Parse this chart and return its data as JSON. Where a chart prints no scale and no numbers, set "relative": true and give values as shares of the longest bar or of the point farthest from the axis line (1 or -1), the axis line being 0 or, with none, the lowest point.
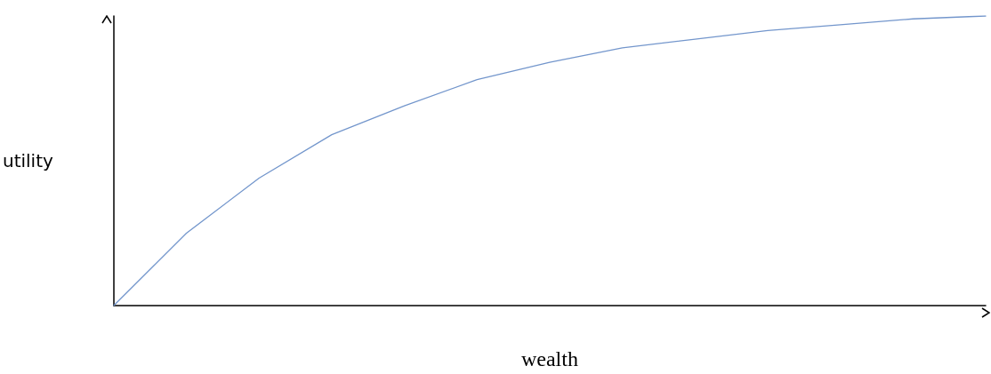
{
  "chart_data": {
    "type": "line",
    "relative": true,
    "xlabel": "wealth",
    "ylabel": "utility",
    "categories": [
      null,
      null,
      null,
      null,
      null,
      null,
      null,
      null,
      null,
      null,
      null,
      null,
      null
    ],
    "series": [
      {
        "color": "#7396cc",
        "values": [
          0,
          0.25,
          0.44,
          0.59,
          0.69,
          0.78,
          0.84,
          0.89,
          0.92,
          0.95,
          0.97,
          0.99,
          1
        ]
      }
    ],
    "marker": "none",
    "line_style": "solid",
    "grid": false
  }
}
